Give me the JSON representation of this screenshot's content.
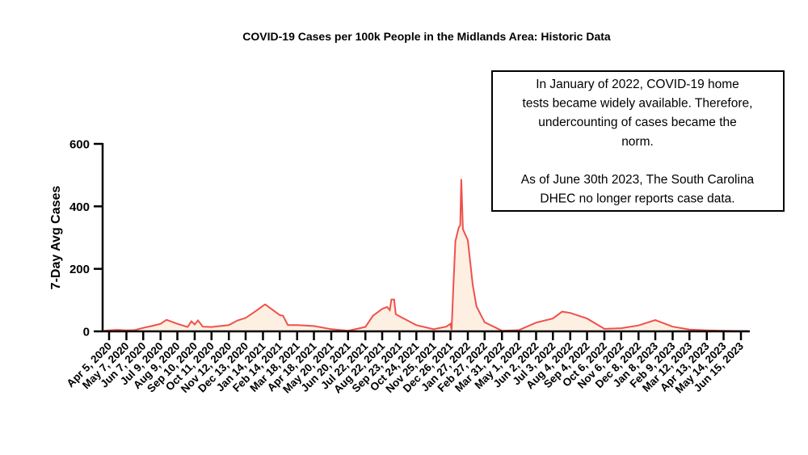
{
  "chart_data": {
    "type": "area",
    "title": "COVID-19 Cases per 100k People in the Midlands Area: Historic Data",
    "xlabel": "",
    "ylabel": "7-Day Avg Cases",
    "ylim": [
      0,
      600
    ],
    "yticks": [
      0,
      200,
      400,
      600
    ],
    "grid": false,
    "line_color": "#f0504a",
    "fill_color": "#fdf0e3",
    "xtick_labels": [
      "Apr 5, 2020",
      "May 7, 2020",
      "Jun 7, 2020",
      "Jul 9, 2020",
      "Aug 9, 2020",
      "Sep 10, 2020",
      "Oct 11, 2020",
      "Nov 12, 2020",
      "Dec 13, 2020",
      "Jan 14, 2021",
      "Feb 14, 2021",
      "Mar 18, 2021",
      "Apr 18, 2021",
      "May 20, 2021",
      "Jun 20, 2021",
      "Jul 22, 2021",
      "Aug 22, 2021",
      "Sep 23, 2021",
      "Oct 24, 2021",
      "Nov 25, 2021",
      "Dec 26, 2021",
      "Jan 27, 2022",
      "Feb 27, 2022",
      "Mar 31, 2022",
      "May 1, 2022",
      "Jun 2, 2022",
      "Jul 3, 2022",
      "Aug 4, 2022",
      "Sep 4, 2022",
      "Oct 6, 2022",
      "Nov 6, 2022",
      "Dec 8, 2022",
      "Jan 8, 2023",
      "Feb 9, 2023",
      "Mar 12, 2023",
      "Apr 13, 2023",
      "May 14, 2023",
      "Jun 15, 2023"
    ],
    "xtick_dates": [
      "2020-04-05",
      "2020-05-07",
      "2020-06-07",
      "2020-07-09",
      "2020-08-09",
      "2020-09-10",
      "2020-10-11",
      "2020-11-12",
      "2020-12-13",
      "2021-01-14",
      "2021-02-14",
      "2021-03-18",
      "2021-04-18",
      "2021-05-20",
      "2021-06-20",
      "2021-07-22",
      "2021-08-22",
      "2021-09-23",
      "2021-10-24",
      "2021-11-25",
      "2021-12-26",
      "2022-01-27",
      "2022-02-27",
      "2022-03-31",
      "2022-05-01",
      "2022-06-02",
      "2022-07-03",
      "2022-08-04",
      "2022-09-04",
      "2022-10-06",
      "2022-11-06",
      "2022-12-08",
      "2023-01-08",
      "2023-02-09",
      "2023-03-12",
      "2023-04-13",
      "2023-05-14",
      "2023-06-15"
    ],
    "points": [
      [
        "2020-04-05",
        3
      ],
      [
        "2020-04-20",
        5
      ],
      [
        "2020-05-07",
        3
      ],
      [
        "2020-05-22",
        4
      ],
      [
        "2020-06-07",
        11
      ],
      [
        "2020-06-25",
        18
      ],
      [
        "2020-07-09",
        24
      ],
      [
        "2020-07-20",
        37
      ],
      [
        "2020-08-09",
        24
      ],
      [
        "2020-08-28",
        14
      ],
      [
        "2020-09-04",
        32
      ],
      [
        "2020-09-10",
        22
      ],
      [
        "2020-09-16",
        35
      ],
      [
        "2020-09-25",
        15
      ],
      [
        "2020-10-11",
        14
      ],
      [
        "2020-11-12",
        20
      ],
      [
        "2020-11-28",
        35
      ],
      [
        "2020-12-13",
        43
      ],
      [
        "2021-01-05",
        70
      ],
      [
        "2021-01-14",
        82
      ],
      [
        "2021-01-18",
        86
      ],
      [
        "2021-02-14",
        52
      ],
      [
        "2021-02-20",
        50
      ],
      [
        "2021-03-01",
        20
      ],
      [
        "2021-03-18",
        20
      ],
      [
        "2021-04-18",
        17
      ],
      [
        "2021-05-20",
        7
      ],
      [
        "2021-06-20",
        2
      ],
      [
        "2021-07-22",
        14
      ],
      [
        "2021-08-05",
        50
      ],
      [
        "2021-08-22",
        72
      ],
      [
        "2021-08-31",
        78
      ],
      [
        "2021-09-05",
        68
      ],
      [
        "2021-09-08",
        102
      ],
      [
        "2021-09-13",
        102
      ],
      [
        "2021-09-16",
        55
      ],
      [
        "2021-09-23",
        48
      ],
      [
        "2021-10-24",
        20
      ],
      [
        "2021-11-25",
        7
      ],
      [
        "2021-12-18",
        15
      ],
      [
        "2021-12-26",
        24
      ],
      [
        "2021-12-28",
        5
      ],
      [
        "2021-12-31",
        132
      ],
      [
        "2022-01-04",
        288
      ],
      [
        "2022-01-10",
        331
      ],
      [
        "2022-01-13",
        340
      ],
      [
        "2022-01-15",
        487
      ],
      [
        "2022-01-18",
        327
      ],
      [
        "2022-01-27",
        292
      ],
      [
        "2022-02-05",
        150
      ],
      [
        "2022-02-12",
        80
      ],
      [
        "2022-02-27",
        29
      ],
      [
        "2022-03-31",
        2
      ],
      [
        "2022-05-01",
        4
      ],
      [
        "2022-06-02",
        28
      ],
      [
        "2022-07-03",
        41
      ],
      [
        "2022-07-20",
        63
      ],
      [
        "2022-08-04",
        59
      ],
      [
        "2022-09-04",
        41
      ],
      [
        "2022-10-06",
        8
      ],
      [
        "2022-11-06",
        10
      ],
      [
        "2022-12-08",
        19
      ],
      [
        "2023-01-08",
        36
      ],
      [
        "2023-02-09",
        15
      ],
      [
        "2023-03-12",
        6
      ],
      [
        "2023-04-13",
        3
      ],
      [
        "2023-05-14",
        2
      ],
      [
        "2023-06-15",
        1
      ]
    ],
    "annotation": {
      "lines": [
        "In January of 2022, COVID-19 home",
        "tests became widely available. Therefore,",
        "undercounting of cases became the",
        "norm.",
        "",
        "As of June 30th 2023, The South Carolina",
        "DHEC no longer reports case data."
      ]
    }
  }
}
